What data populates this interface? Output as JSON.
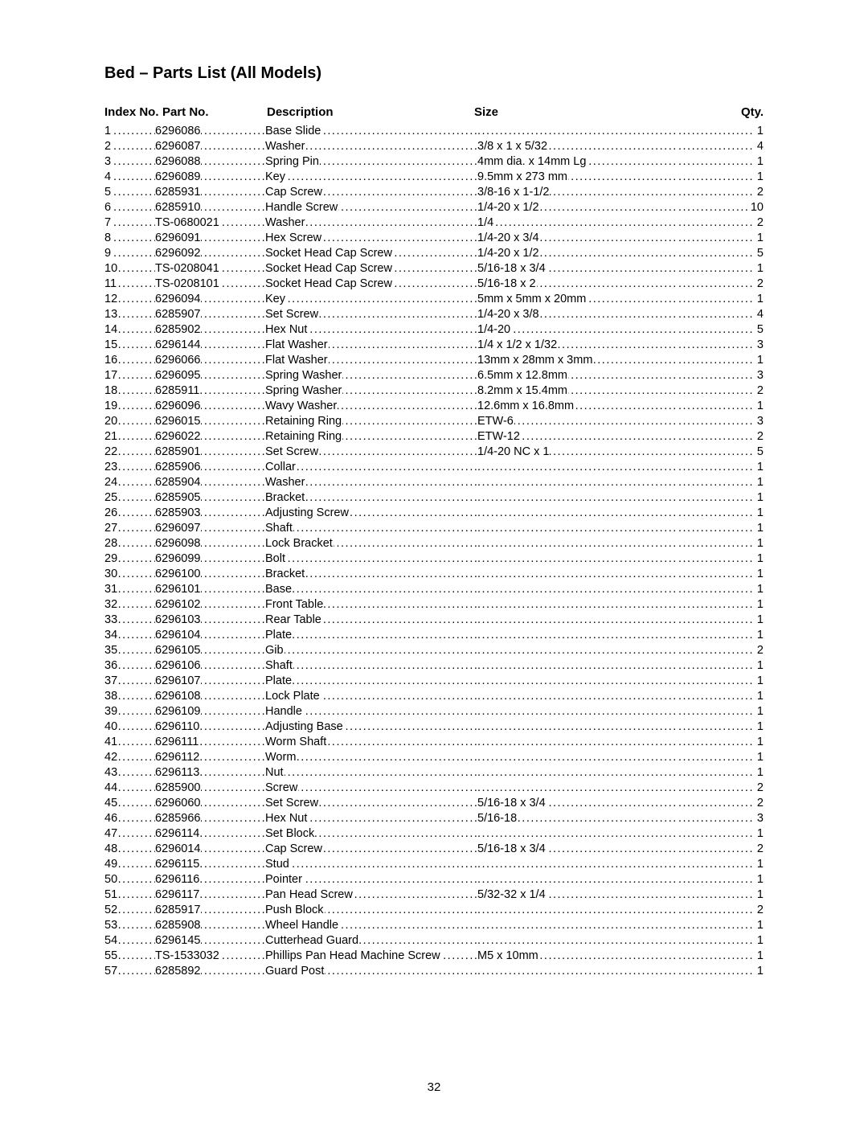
{
  "page": {
    "title": "Bed – Parts List (All Models)",
    "page_number": "32",
    "headers": {
      "index": "Index No.",
      "part": "Part No.",
      "description": "Description",
      "size": "Size",
      "qty": "Qty."
    },
    "font_family": "Arial, Helvetica, sans-serif",
    "colors": {
      "text": "#000000",
      "background": "#ffffff"
    }
  },
  "rows": [
    {
      "index": "1",
      "part": "6296086",
      "desc": "Base Slide",
      "size": "",
      "qty": "1"
    },
    {
      "index": "2",
      "part": "6296087",
      "desc": "Washer",
      "size": "3/8 x 1 x 5/32",
      "qty": "4"
    },
    {
      "index": "3",
      "part": "6296088",
      "desc": "Spring Pin",
      "size": "4mm dia. x 14mm Lg",
      "qty": "1"
    },
    {
      "index": "4",
      "part": "6296089",
      "desc": "Key",
      "size": "9.5mm x 273 mm",
      "qty": "1"
    },
    {
      "index": "5",
      "part": "6285931",
      "desc": "Cap Screw",
      "size": "3/8-16 x 1-1/2",
      "qty": "2"
    },
    {
      "index": "6",
      "part": "6285910",
      "desc": "Handle Screw",
      "size": "1/4-20 x 1/2",
      "qty": "10"
    },
    {
      "index": "7",
      "part": "TS-0680021",
      "desc": "Washer",
      "size": "1/4",
      "qty": "2"
    },
    {
      "index": "8",
      "part": "6296091",
      "desc": "Hex Screw",
      "size": "1/4-20 x 3/4",
      "qty": "1"
    },
    {
      "index": "9",
      "part": "6296092",
      "desc": "Socket Head Cap Screw",
      "size": "1/4-20 x 1/2",
      "qty": "5"
    },
    {
      "index": "10",
      "part": "TS-0208041",
      "desc": "Socket Head Cap Screw",
      "size": "5/16-18 x 3/4",
      "qty": "1"
    },
    {
      "index": "11",
      "part": "TS-0208101",
      "desc": "Socket Head Cap Screw",
      "size": "5/16-18 x 2",
      "qty": "2"
    },
    {
      "index": "12",
      "part": "6296094",
      "desc": "Key",
      "size": "5mm x 5mm x 20mm",
      "qty": "1"
    },
    {
      "index": "13",
      "part": "6285907",
      "desc": "Set Screw",
      "size": "1/4-20 x 3/8",
      "qty": "4"
    },
    {
      "index": "14",
      "part": "6285902",
      "desc": "Hex Nut",
      "size": "1/4-20",
      "qty": "5"
    },
    {
      "index": "15",
      "part": "6296144",
      "desc": "Flat Washer",
      "size": "1/4 x 1/2 x 1/32",
      "qty": "3"
    },
    {
      "index": "16",
      "part": "6296066",
      "desc": "Flat Washer",
      "size": "13mm x 28mm x 3mm",
      "qty": "1"
    },
    {
      "index": "17",
      "part": "6296095",
      "desc": "Spring Washer",
      "size": "6.5mm x 12.8mm",
      "qty": "3"
    },
    {
      "index": "18",
      "part": "6285911",
      "desc": "Spring Washer",
      "size": "8.2mm x 15.4mm",
      "qty": "2"
    },
    {
      "index": "19",
      "part": "6296096",
      "desc": "Wavy Washer",
      "size": "12.6mm x 16.8mm",
      "qty": "1"
    },
    {
      "index": "20",
      "part": "6296015",
      "desc": "Retaining Ring",
      "size": "ETW-6",
      "qty": "3"
    },
    {
      "index": "21",
      "part": "6296022",
      "desc": "Retaining Ring",
      "size": "ETW-12",
      "qty": "2"
    },
    {
      "index": "22",
      "part": "6285901",
      "desc": "Set Screw",
      "size": "1/4-20 NC x 1",
      "qty": "5"
    },
    {
      "index": "23",
      "part": "6285906",
      "desc": "Collar",
      "size": "",
      "qty": "1"
    },
    {
      "index": "24",
      "part": "6285904",
      "desc": "Washer",
      "size": "",
      "qty": "1"
    },
    {
      "index": "25",
      "part": "6285905",
      "desc": "Bracket",
      "size": "",
      "qty": "1"
    },
    {
      "index": "26",
      "part": "6285903",
      "desc": "Adjusting Screw",
      "size": "",
      "qty": "1"
    },
    {
      "index": "27",
      "part": "6296097",
      "desc": "Shaft",
      "size": "",
      "qty": "1"
    },
    {
      "index": "28",
      "part": "6296098",
      "desc": "Lock Bracket",
      "size": "",
      "qty": "1"
    },
    {
      "index": "29",
      "part": "6296099",
      "desc": "Bolt",
      "size": "",
      "qty": "1"
    },
    {
      "index": "30",
      "part": "6296100",
      "desc": "Bracket",
      "size": "",
      "qty": "1"
    },
    {
      "index": "31",
      "part": "6296101",
      "desc": "Base",
      "size": "",
      "qty": "1"
    },
    {
      "index": "32",
      "part": "6296102",
      "desc": "Front Table",
      "size": "",
      "qty": "1"
    },
    {
      "index": "33",
      "part": "6296103",
      "desc": "Rear Table",
      "size": "",
      "qty": "1"
    },
    {
      "index": "34",
      "part": "6296104",
      "desc": "Plate",
      "size": "",
      "qty": "1"
    },
    {
      "index": "35",
      "part": "6296105",
      "desc": "Gib",
      "size": "",
      "qty": "2"
    },
    {
      "index": "36",
      "part": "6296106",
      "desc": "Shaft",
      "size": "",
      "qty": "1"
    },
    {
      "index": "37",
      "part": "6296107",
      "desc": "Plate",
      "size": "",
      "qty": "1"
    },
    {
      "index": "38",
      "part": "6296108",
      "desc": "Lock Plate",
      "size": "",
      "qty": "1"
    },
    {
      "index": "39",
      "part": "6296109",
      "desc": "Handle",
      "size": "",
      "qty": "1"
    },
    {
      "index": "40",
      "part": "6296110",
      "desc": "Adjusting Base",
      "size": "",
      "qty": "1"
    },
    {
      "index": "41",
      "part": "6296111",
      "desc": "Worm Shaft",
      "size": "",
      "qty": "1"
    },
    {
      "index": "42",
      "part": "6296112",
      "desc": "Worm",
      "size": "",
      "qty": "1"
    },
    {
      "index": "43",
      "part": "6296113",
      "desc": "Nut",
      "size": "",
      "qty": "1"
    },
    {
      "index": "44",
      "part": "6285900",
      "desc": "Screw",
      "size": "",
      "qty": "2"
    },
    {
      "index": "45",
      "part": "6296060",
      "desc": "Set Screw",
      "size": "5/16-18 x 3/4",
      "qty": "2"
    },
    {
      "index": "46",
      "part": "6285966",
      "desc": "Hex Nut",
      "size": "5/16-18",
      "qty": "3"
    },
    {
      "index": "47",
      "part": "6296114",
      "desc": "Set Block",
      "size": "",
      "qty": "1"
    },
    {
      "index": "48",
      "part": "6296014",
      "desc": "Cap Screw",
      "size": " 5/16-18 x 3/4",
      "qty": "2"
    },
    {
      "index": "49",
      "part": "6296115",
      "desc": "Stud",
      "size": "",
      "qty": "1"
    },
    {
      "index": "50",
      "part": "6296116",
      "desc": "Pointer",
      "size": "",
      "qty": "1"
    },
    {
      "index": "51",
      "part": "6296117",
      "desc": "Pan Head Screw",
      "size": "5/32-32 x 1/4",
      "qty": "1"
    },
    {
      "index": "52",
      "part": "6285917",
      "desc": "Push Block",
      "size": "",
      "qty": "2"
    },
    {
      "index": "53",
      "part": "6285908",
      "desc": "Wheel Handle",
      "size": "",
      "qty": "1"
    },
    {
      "index": "54",
      "part": "6296145",
      "desc": "Cutterhead Guard",
      "size": "",
      "qty": "1"
    },
    {
      "index": "55",
      "part": "TS-1533032",
      "desc": "Phillips Pan Head Machine Screw",
      "size": "M5 x 10mm",
      "qty": "1"
    },
    {
      "index": "57",
      "part": "6285892",
      "desc": "Guard Post",
      "size": "",
      "qty": "1"
    }
  ]
}
